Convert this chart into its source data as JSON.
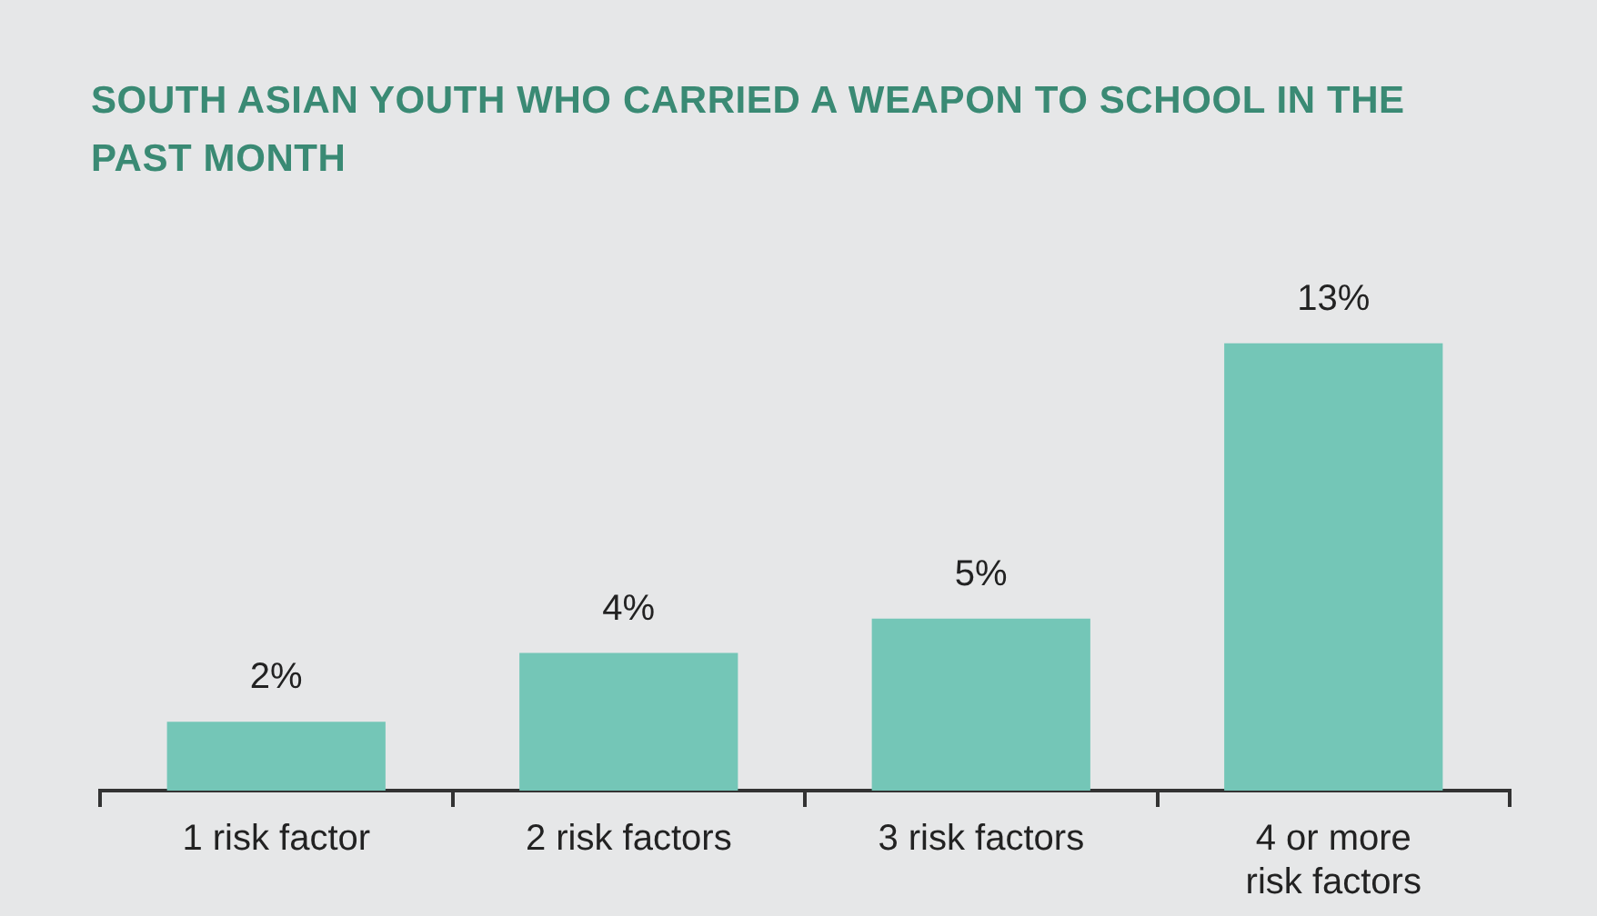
{
  "chart_data": {
    "type": "bar",
    "title": "SOUTH ASIAN YOUTH WHO CARRIED A WEAPON TO SCHOOL IN THE PAST MONTH",
    "categories": [
      "1 risk factor",
      "2 risk factors",
      "3 risk factors",
      "4 or more risk factors"
    ],
    "values": [
      2,
      4,
      5,
      13
    ],
    "color": "#74c6b7",
    "data_labels": true,
    "value_labels": [
      "2%",
      "4%",
      "5%",
      "13%"
    ],
    "grid": false,
    "legend": false
  }
}
